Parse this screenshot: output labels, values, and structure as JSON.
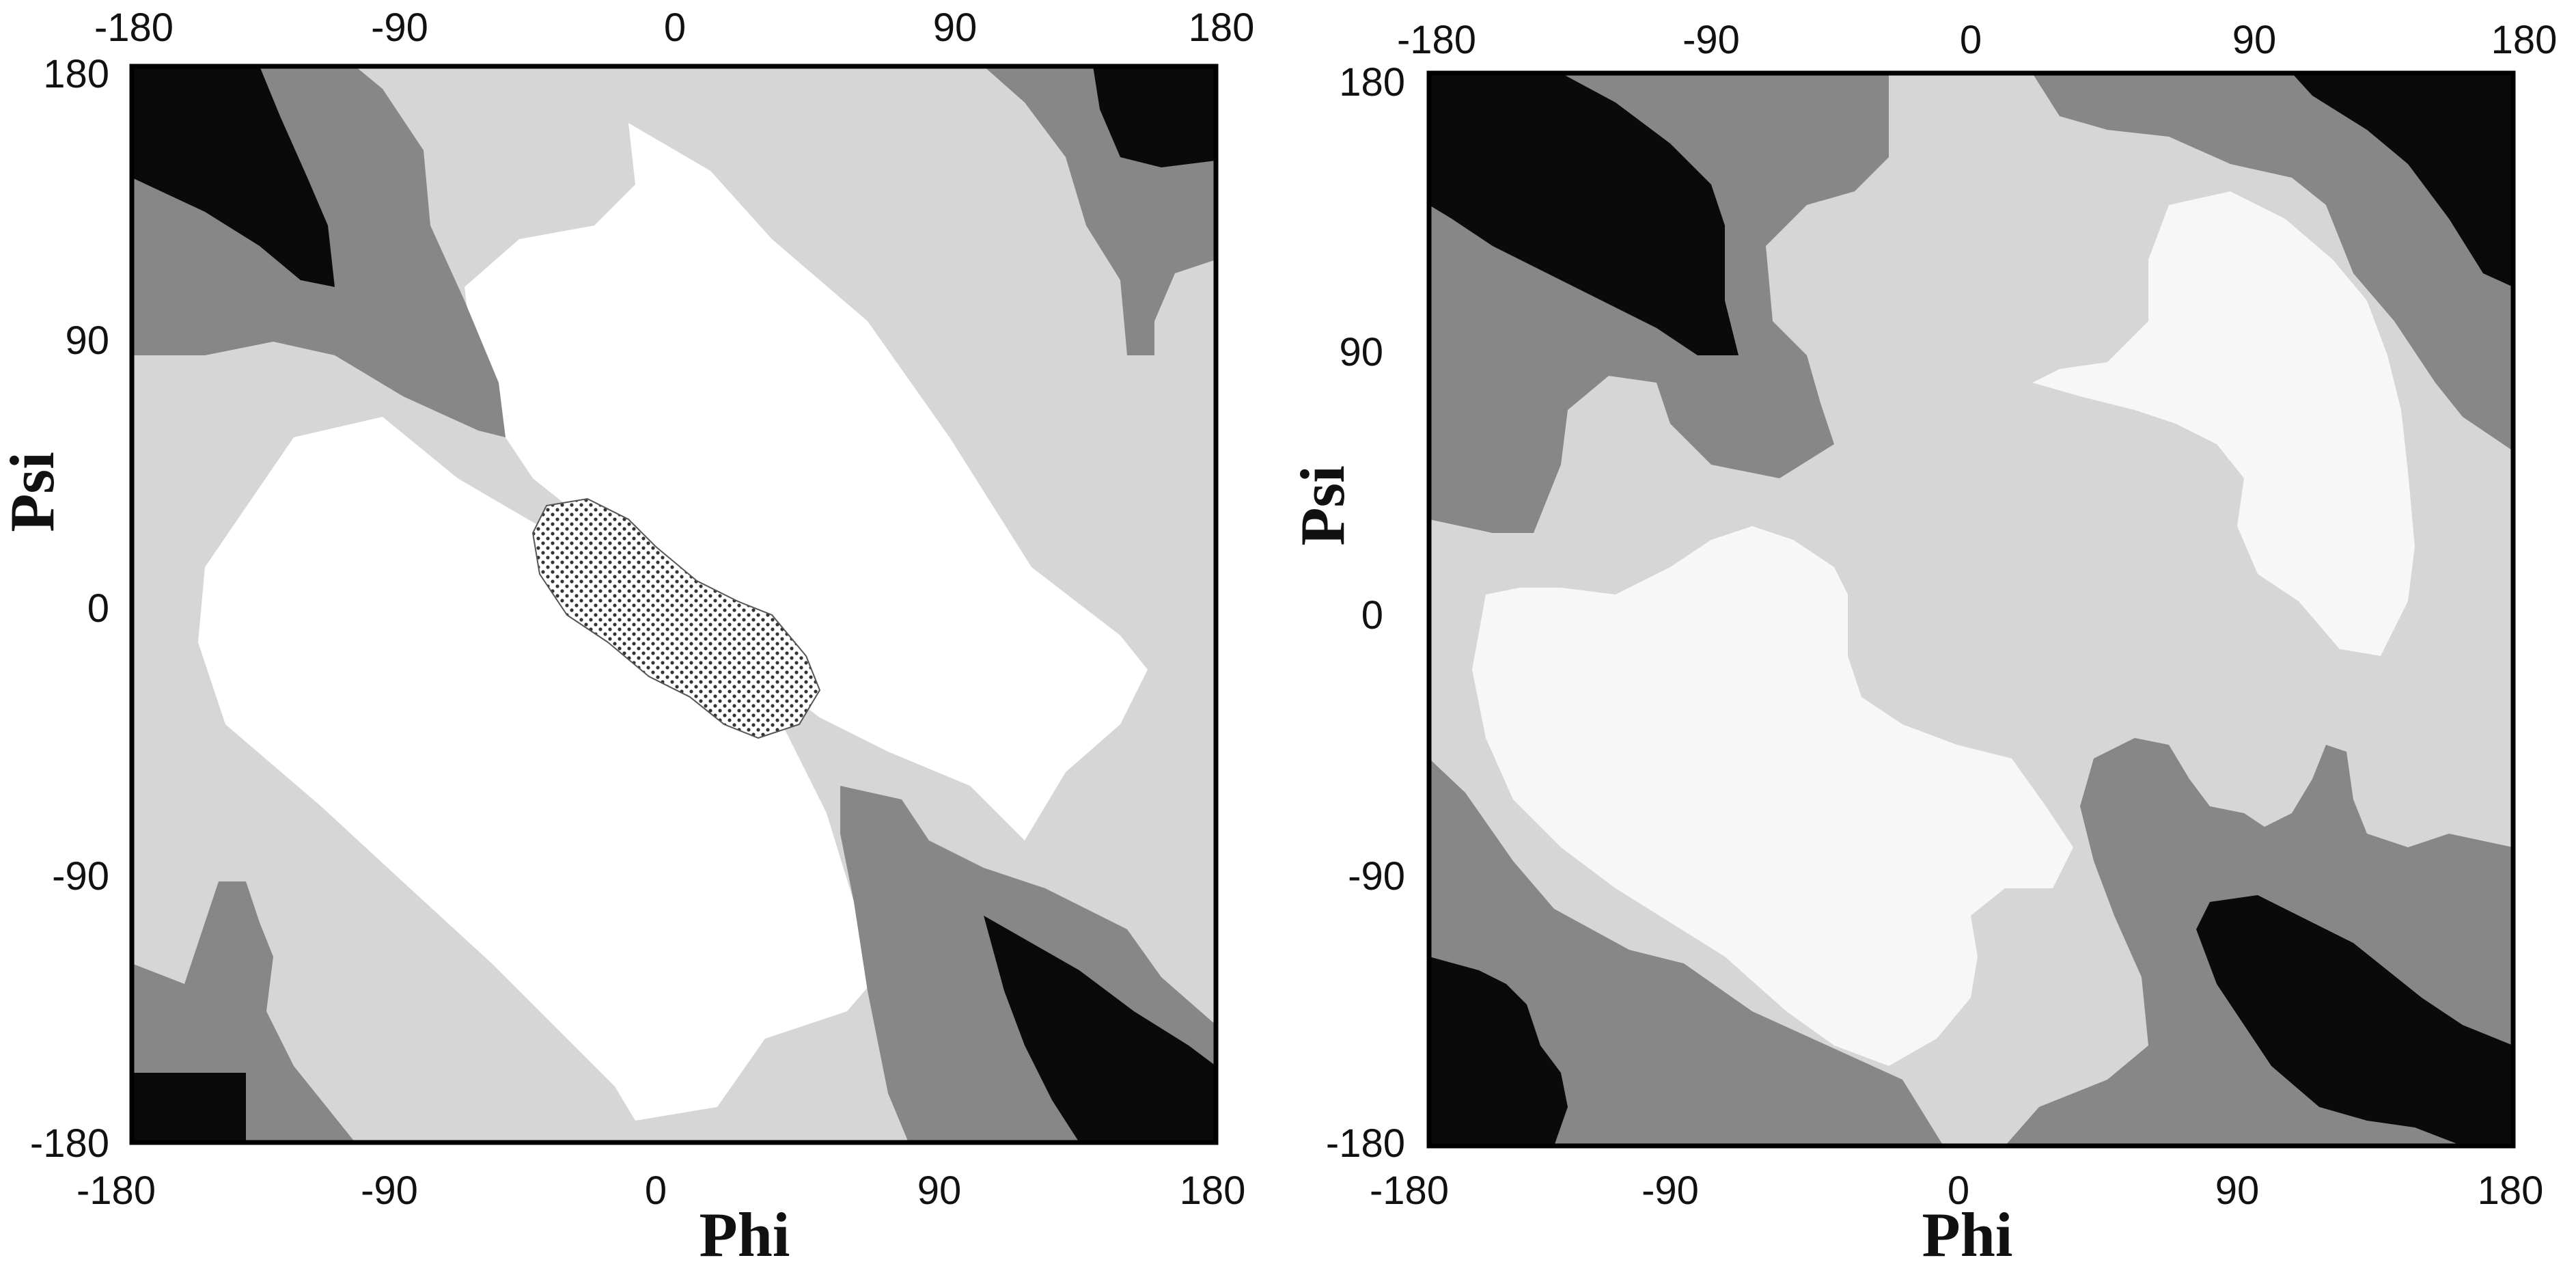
{
  "colors": {
    "region_1": "#ffffff",
    "region_2": "#d6d6d6",
    "region_3": "#878787",
    "region_4": "#0a0a0a",
    "frame": "#000000"
  },
  "chart_data": [
    {
      "type": "heatmap",
      "title": "",
      "xlabel": "Phi",
      "ylabel": "Psi",
      "xlim": [
        -180,
        180
      ],
      "ylim": [
        -180,
        180
      ],
      "x_ticks_top": [
        "-180",
        "-90",
        "0",
        "90",
        "180"
      ],
      "x_ticks_bottom": [
        "-180",
        "-90",
        "0",
        "90",
        "180"
      ],
      "y_ticks": [
        "180",
        "90",
        "0",
        "-90",
        "-180"
      ],
      "grid": false,
      "legend": "none",
      "levels": 4,
      "has_dotted_region": true,
      "dotted_region_center": [
        -15,
        0
      ]
    },
    {
      "type": "heatmap",
      "title": "",
      "xlabel": "Phi",
      "ylabel": "Psi",
      "xlim": [
        -180,
        180
      ],
      "ylim": [
        -180,
        180
      ],
      "x_ticks_top": [
        "-180",
        "-90",
        "0",
        "90",
        "180"
      ],
      "x_ticks_bottom": [
        "-180",
        "-90",
        "0",
        "90",
        "180"
      ],
      "y_ticks": [
        "180",
        "90",
        "0",
        "-90",
        "-180"
      ],
      "grid": false,
      "legend": "none",
      "levels": 4,
      "has_dotted_region": false
    }
  ]
}
